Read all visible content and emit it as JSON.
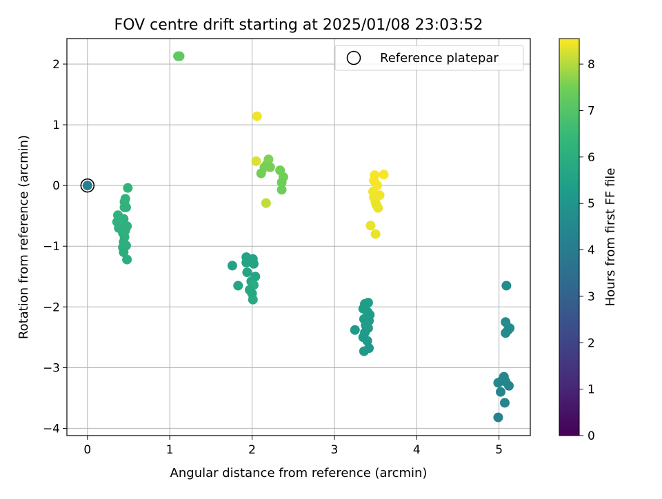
{
  "chart_data": {
    "type": "scatter",
    "title": "FOV centre drift starting at 2025/01/08 23:03:52",
    "xlabel": "Angular distance from reference (arcmin)",
    "ylabel": "Rotation from reference (arcmin)",
    "xlim": [
      -0.25,
      5.38
    ],
    "ylim": [
      -4.12,
      2.42
    ],
    "xticks": [
      0,
      1,
      2,
      3,
      4,
      5
    ],
    "yticks": [
      -4,
      -3,
      -2,
      -1,
      0,
      1,
      2
    ],
    "xtick_labels": [
      "0",
      "1",
      "2",
      "3",
      "4",
      "5"
    ],
    "ytick_labels": [
      "−4",
      "−3",
      "−2",
      "−1",
      "0",
      "1",
      "2"
    ],
    "grid": true,
    "legend": {
      "placement": "top-right",
      "entries": [
        "Reference platepar"
      ]
    },
    "colorbar": {
      "label": "Hours from first FF file",
      "min": 0,
      "max": 8.55,
      "ticks": [
        0,
        1,
        2,
        3,
        4,
        5,
        6,
        7,
        8
      ],
      "tick_labels": [
        "0",
        "1",
        "2",
        "3",
        "4",
        "5",
        "6",
        "7",
        "8"
      ],
      "colormap": "viridis"
    },
    "reference_point": {
      "x": 0,
      "y": 0
    },
    "points": [
      {
        "x": 0.0,
        "y": 0.0,
        "h": 4.2
      },
      {
        "x": 0.49,
        "y": -0.04,
        "h": 6.25
      },
      {
        "x": 0.46,
        "y": -0.22,
        "h": 6.25
      },
      {
        "x": 0.45,
        "y": -0.27,
        "h": 6.25
      },
      {
        "x": 0.45,
        "y": -0.36,
        "h": 6.2
      },
      {
        "x": 0.47,
        "y": -0.36,
        "h": 6.2
      },
      {
        "x": 0.37,
        "y": -0.49,
        "h": 6.2
      },
      {
        "x": 0.44,
        "y": -0.55,
        "h": 6.15
      },
      {
        "x": 0.36,
        "y": -0.6,
        "h": 6.15
      },
      {
        "x": 0.42,
        "y": -0.63,
        "h": 6.15
      },
      {
        "x": 0.48,
        "y": -0.67,
        "h": 6.15
      },
      {
        "x": 0.38,
        "y": -0.7,
        "h": 6.1
      },
      {
        "x": 0.46,
        "y": -0.74,
        "h": 6.1
      },
      {
        "x": 0.43,
        "y": -0.78,
        "h": 6.1
      },
      {
        "x": 0.45,
        "y": -0.85,
        "h": 6.1
      },
      {
        "x": 0.44,
        "y": -0.93,
        "h": 6.05
      },
      {
        "x": 0.47,
        "y": -0.99,
        "h": 6.05
      },
      {
        "x": 0.43,
        "y": -1.02,
        "h": 6.05
      },
      {
        "x": 0.44,
        "y": -1.1,
        "h": 6.0
      },
      {
        "x": 0.48,
        "y": -1.22,
        "h": 6.0
      },
      {
        "x": 1.1,
        "y": 2.13,
        "h": 7.2
      },
      {
        "x": 1.12,
        "y": 2.13,
        "h": 7.2
      },
      {
        "x": 2.06,
        "y": 1.14,
        "h": 8.45
      },
      {
        "x": 2.05,
        "y": 0.4,
        "h": 8.3
      },
      {
        "x": 2.2,
        "y": 0.43,
        "h": 7.6
      },
      {
        "x": 2.18,
        "y": 0.35,
        "h": 7.6
      },
      {
        "x": 2.15,
        "y": 0.3,
        "h": 7.55
      },
      {
        "x": 2.22,
        "y": 0.3,
        "h": 7.55
      },
      {
        "x": 2.11,
        "y": 0.2,
        "h": 7.5
      },
      {
        "x": 2.34,
        "y": 0.25,
        "h": 7.5
      },
      {
        "x": 2.38,
        "y": 0.14,
        "h": 7.5
      },
      {
        "x": 2.36,
        "y": 0.05,
        "h": 7.45
      },
      {
        "x": 2.36,
        "y": -0.07,
        "h": 7.45
      },
      {
        "x": 2.17,
        "y": -0.29,
        "h": 8.1
      },
      {
        "x": 1.76,
        "y": -1.32,
        "h": 5.55
      },
      {
        "x": 1.93,
        "y": -1.18,
        "h": 5.6
      },
      {
        "x": 2.01,
        "y": -1.21,
        "h": 5.6
      },
      {
        "x": 1.93,
        "y": -1.27,
        "h": 5.6
      },
      {
        "x": 2.02,
        "y": -1.29,
        "h": 5.6
      },
      {
        "x": 1.94,
        "y": -1.43,
        "h": 5.65
      },
      {
        "x": 2.04,
        "y": -1.5,
        "h": 5.65
      },
      {
        "x": 1.99,
        "y": -1.58,
        "h": 5.7
      },
      {
        "x": 1.83,
        "y": -1.65,
        "h": 5.7
      },
      {
        "x": 2.02,
        "y": -1.64,
        "h": 5.9
      },
      {
        "x": 1.97,
        "y": -1.72,
        "h": 5.75
      },
      {
        "x": 2.0,
        "y": -1.78,
        "h": 5.75
      },
      {
        "x": 2.01,
        "y": -1.88,
        "h": 5.8
      },
      {
        "x": 3.49,
        "y": 0.17,
        "h": 8.5
      },
      {
        "x": 3.6,
        "y": 0.18,
        "h": 8.5
      },
      {
        "x": 3.48,
        "y": 0.08,
        "h": 8.5
      },
      {
        "x": 3.52,
        "y": 0.0,
        "h": 8.5
      },
      {
        "x": 3.47,
        "y": -0.1,
        "h": 8.45
      },
      {
        "x": 3.55,
        "y": -0.16,
        "h": 8.45
      },
      {
        "x": 3.48,
        "y": -0.2,
        "h": 8.45
      },
      {
        "x": 3.5,
        "y": -0.28,
        "h": 8.45
      },
      {
        "x": 3.51,
        "y": -0.32,
        "h": 8.4
      },
      {
        "x": 3.53,
        "y": -0.37,
        "h": 8.4
      },
      {
        "x": 3.44,
        "y": -0.66,
        "h": 8.4
      },
      {
        "x": 3.5,
        "y": -0.8,
        "h": 8.4
      },
      {
        "x": 3.37,
        "y": -1.95,
        "h": 5.35
      },
      {
        "x": 3.41,
        "y": -1.93,
        "h": 5.35
      },
      {
        "x": 3.35,
        "y": -2.03,
        "h": 5.3
      },
      {
        "x": 3.4,
        "y": -2.08,
        "h": 5.3
      },
      {
        "x": 3.43,
        "y": -2.13,
        "h": 5.3
      },
      {
        "x": 3.36,
        "y": -2.2,
        "h": 5.3
      },
      {
        "x": 3.42,
        "y": -2.23,
        "h": 5.25
      },
      {
        "x": 3.38,
        "y": -2.3,
        "h": 5.25
      },
      {
        "x": 3.41,
        "y": -2.35,
        "h": 5.25
      },
      {
        "x": 3.25,
        "y": -2.38,
        "h": 5.2
      },
      {
        "x": 3.37,
        "y": -2.42,
        "h": 5.2
      },
      {
        "x": 3.35,
        "y": -2.5,
        "h": 5.2
      },
      {
        "x": 3.4,
        "y": -2.56,
        "h": 5.2
      },
      {
        "x": 3.42,
        "y": -2.68,
        "h": 5.15
      },
      {
        "x": 3.36,
        "y": -2.73,
        "h": 5.15
      },
      {
        "x": 5.09,
        "y": -1.65,
        "h": 4.7
      },
      {
        "x": 5.08,
        "y": -2.25,
        "h": 4.65
      },
      {
        "x": 5.13,
        "y": -2.35,
        "h": 4.65
      },
      {
        "x": 5.11,
        "y": -2.38,
        "h": 4.6
      },
      {
        "x": 5.08,
        "y": -2.43,
        "h": 4.6
      },
      {
        "x": 5.06,
        "y": -3.15,
        "h": 4.5
      },
      {
        "x": 4.99,
        "y": -3.25,
        "h": 4.5
      },
      {
        "x": 5.03,
        "y": -3.22,
        "h": 4.45
      },
      {
        "x": 5.08,
        "y": -3.23,
        "h": 4.45
      },
      {
        "x": 5.12,
        "y": -3.3,
        "h": 4.4
      },
      {
        "x": 5.02,
        "y": -3.4,
        "h": 4.4
      },
      {
        "x": 5.07,
        "y": -3.58,
        "h": 4.35
      },
      {
        "x": 4.99,
        "y": -3.82,
        "h": 4.3
      }
    ]
  }
}
